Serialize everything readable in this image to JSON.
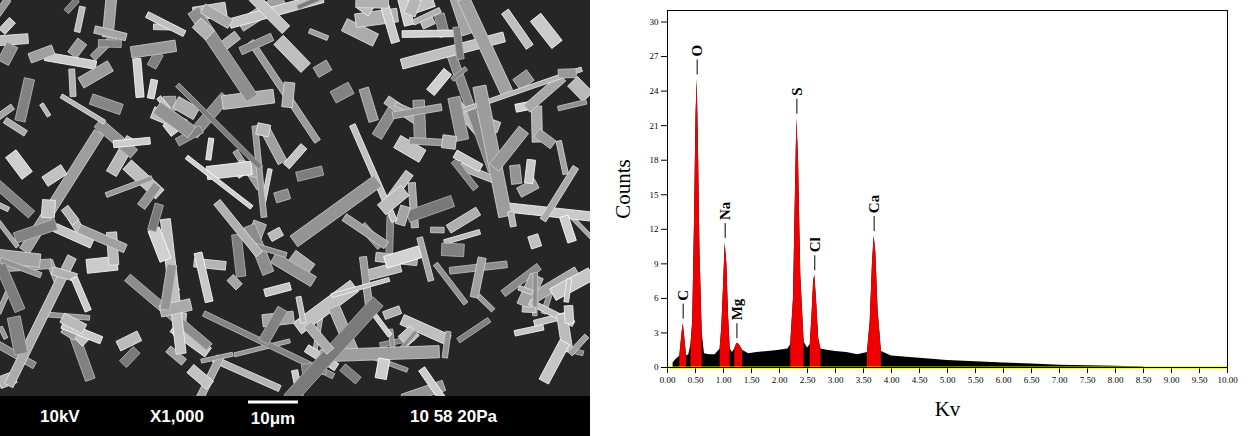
{
  "chart_data": {
    "type": "area",
    "x_label": "Kv",
    "y_label": "Counts",
    "xlim": [
      0,
      10
    ],
    "ylim": [
      0,
      31
    ],
    "xticks": [
      {
        "value": 0,
        "label": "0.00"
      },
      {
        "value": 0.5,
        "label": "0.50"
      },
      {
        "value": 1,
        "label": "1.00"
      },
      {
        "value": 1.5,
        "label": "1.50"
      },
      {
        "value": 2,
        "label": "2.00"
      },
      {
        "value": 2.5,
        "label": "2.50"
      },
      {
        "value": 3,
        "label": "3.00"
      },
      {
        "value": 3.5,
        "label": "3.50"
      },
      {
        "value": 4,
        "label": "4.00"
      },
      {
        "value": 4.5,
        "label": "4.50"
      },
      {
        "value": 5,
        "label": "5.00"
      },
      {
        "value": 5.5,
        "label": "5.50"
      },
      {
        "value": 6,
        "label": "6.00"
      },
      {
        "value": 6.5,
        "label": "6.50"
      },
      {
        "value": 7,
        "label": "7.00"
      },
      {
        "value": 7.5,
        "label": "7.50"
      },
      {
        "value": 8,
        "label": "8.00"
      },
      {
        "value": 8.5,
        "label": "8.50"
      },
      {
        "value": 9,
        "label": "9.00"
      },
      {
        "value": 9.5,
        "label": "9.50"
      },
      {
        "value": 10,
        "label": "10.00"
      }
    ],
    "yticks": [
      0,
      3,
      6,
      9,
      12,
      15,
      18,
      21,
      24,
      27,
      30
    ],
    "grid": false,
    "color": "#000000",
    "x": [
      0.1,
      0.15,
      0.2,
      0.22,
      0.26,
      0.28,
      0.3,
      0.34,
      0.38,
      0.42,
      0.45,
      0.48,
      0.51,
      0.53,
      0.55,
      0.58,
      0.62,
      0.66,
      0.75,
      0.85,
      0.94,
      0.97,
      1.0,
      1.03,
      1.06,
      1.09,
      1.12,
      1.16,
      1.2,
      1.24,
      1.28,
      1.34,
      1.45,
      1.6,
      1.8,
      2.0,
      2.15,
      2.2,
      2.25,
      2.28,
      2.31,
      2.34,
      2.38,
      2.44,
      2.5,
      2.55,
      2.58,
      2.61,
      2.63,
      2.66,
      2.7,
      2.74,
      2.85,
      3.0,
      3.2,
      3.4,
      3.57,
      3.62,
      3.66,
      3.69,
      3.72,
      3.76,
      3.82,
      4.0,
      4.5,
      5.0,
      5.5,
      6.0,
      6.5,
      7.0,
      7.5,
      8.0,
      8.5
    ],
    "values": [
      0.4,
      0.7,
      0.9,
      1.0,
      3.0,
      3.8,
      3.0,
      1.0,
      1.1,
      2.0,
      4.0,
      12.0,
      22.0,
      25.0,
      20.0,
      10.0,
      3.0,
      1.2,
      1.1,
      1.1,
      1.6,
      3.5,
      7.0,
      10.8,
      9.0,
      4.5,
      1.6,
      1.3,
      1.6,
      2.1,
      2.0,
      1.5,
      1.2,
      1.3,
      1.4,
      1.5,
      1.6,
      2.0,
      6.0,
      14.0,
      21.6,
      18.0,
      8.0,
      2.2,
      1.7,
      2.0,
      4.5,
      7.5,
      8.0,
      6.0,
      2.5,
      1.6,
      1.5,
      1.4,
      1.3,
      1.1,
      1.3,
      4.0,
      9.0,
      11.4,
      10.0,
      5.0,
      1.4,
      1.0,
      0.8,
      0.6,
      0.5,
      0.4,
      0.3,
      0.2,
      0.15,
      0.1,
      0.05
    ],
    "peaks": [
      {
        "label": "C",
        "range": [
          0.22,
          0.34
        ],
        "color": "#ee0000"
      },
      {
        "label": "O",
        "range": [
          0.42,
          0.62
        ],
        "color": "#ee0000"
      },
      {
        "label": "Na",
        "range": [
          0.94,
          1.12
        ],
        "color": "#ee0000"
      },
      {
        "label": "Mg",
        "range": [
          1.2,
          1.34
        ],
        "color": "#ee0000"
      },
      {
        "label": "S",
        "range": [
          2.2,
          2.44
        ],
        "color": "#ee0000"
      },
      {
        "label": "Cl",
        "range": [
          2.55,
          2.74
        ],
        "color": "#ee0000"
      },
      {
        "label": "Ca",
        "range": [
          3.57,
          3.82
        ],
        "color": "#ee0000"
      }
    ]
  },
  "micrograph": {
    "footer": {
      "voltage": "10kV",
      "magnification": "X1,000",
      "scale_bar": "10μm",
      "info": "10 58 20Pa"
    }
  }
}
